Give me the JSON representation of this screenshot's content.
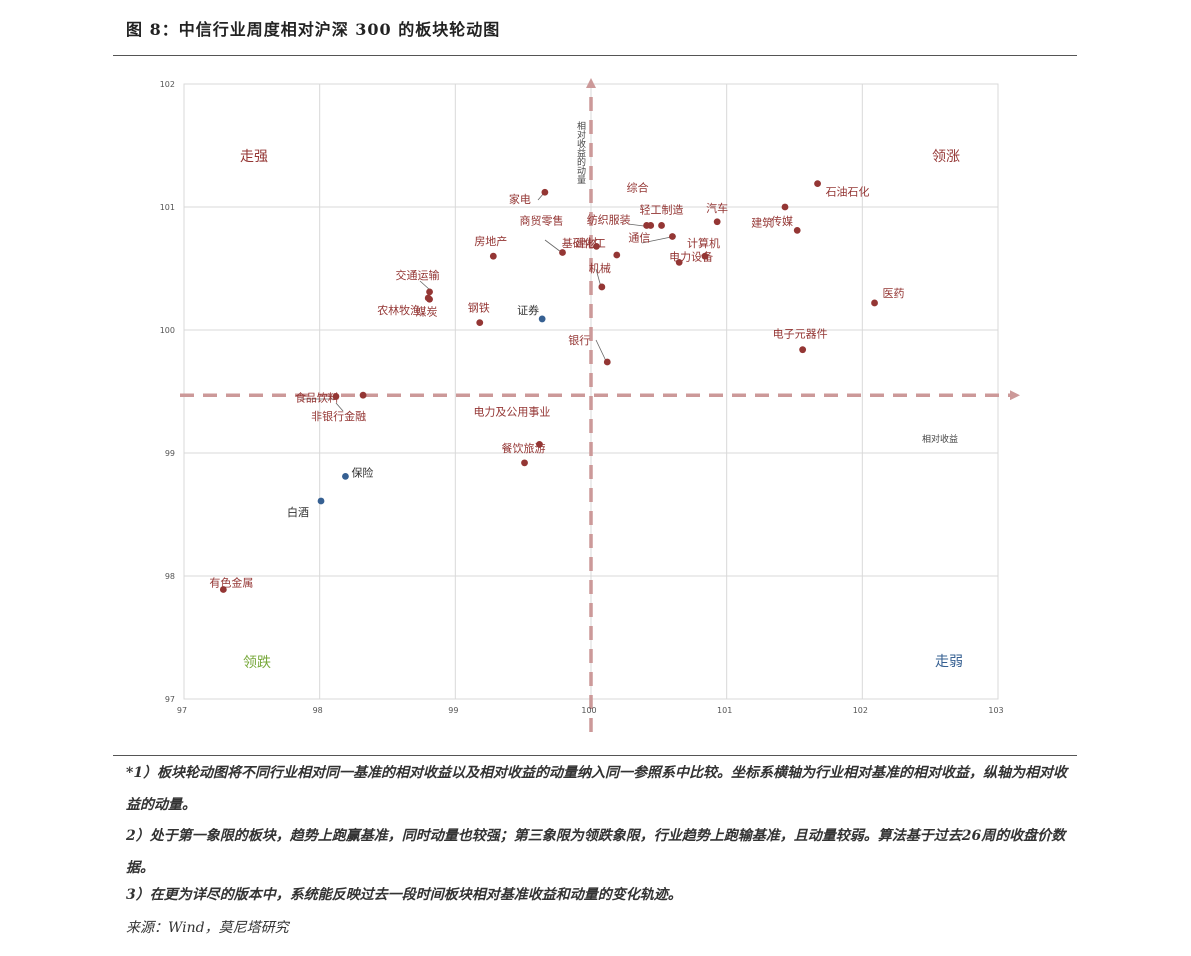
{
  "title": "图 8：中信行业周度相对沪深 300 的板块轮动图",
  "notes": {
    "n1": "*1）板块轮动图将不同行业相对同一基准的相对收益以及相对收益的动量纳入同一参照系中比较。坐标系横轴为行业相对基准的相对收益，纵轴为相对收益的动量。",
    "n2": " 2）处于第一象限的板块，趋势上跑赢基准，同时动量也较强；第三象限为领跌象限，行业趋势上跑输基准，且动量较弱。算法基于过去26周的收盘价数据。",
    "n3": " 3）在更为详尽的版本中，系统能反映过去一段时间板块相对基准收益和动量的变化轨迹。"
  },
  "source": "来源：Wind，莫尼塔研究",
  "colors": {
    "red": "#943634",
    "blue": "#366092",
    "green": "#77a83a",
    "axis": "#cc9999",
    "grid": "#d9d9d9"
  },
  "chart_data": {
    "type": "scatter",
    "xlabel": "相对收益",
    "ylabel": "相对收益的动量",
    "xlim": [
      97,
      103
    ],
    "ylim": [
      97,
      102
    ],
    "xticks": [
      "97",
      "98",
      "99",
      "100",
      "101",
      "102",
      "103"
    ],
    "yticks": [
      "97",
      "98",
      "99",
      "100",
      "101",
      "102"
    ],
    "grid": true,
    "reference_lines": {
      "x": 100,
      "y": 99.47
    },
    "quadrant_labels": {
      "top_left": "走强",
      "top_right": "领涨",
      "bottom_left": "领跌",
      "bottom_right": "走弱"
    },
    "points": [
      {
        "name": "石油石化",
        "x": 101.67,
        "y": 101.19,
        "color": "red"
      },
      {
        "name": "传媒",
        "x": 101.43,
        "y": 101.0,
        "color": "red"
      },
      {
        "name": "建筑",
        "x": 101.52,
        "y": 100.81,
        "color": "red"
      },
      {
        "name": "医药",
        "x": 102.09,
        "y": 100.22,
        "color": "red"
      },
      {
        "name": "电子元器件",
        "x": 101.56,
        "y": 99.84,
        "color": "red"
      },
      {
        "name": "汽车",
        "x": 100.93,
        "y": 100.88,
        "color": "red"
      },
      {
        "name": "计算机",
        "x": 100.84,
        "y": 100.6,
        "color": "red"
      },
      {
        "name": "电力设备",
        "x": 100.65,
        "y": 100.55,
        "color": "red"
      },
      {
        "name": "综合",
        "x": 100.41,
        "y": 100.85,
        "color": "red"
      },
      {
        "name": "轻工制造",
        "x": 100.52,
        "y": 100.85,
        "color": "red"
      },
      {
        "name": "纺织服装",
        "x": 100.44,
        "y": 100.85,
        "color": "red"
      },
      {
        "name": "通信",
        "x": 100.6,
        "y": 100.76,
        "color": "red"
      },
      {
        "name": "基础化工",
        "x": 100.19,
        "y": 100.61,
        "color": "red"
      },
      {
        "name": "建材",
        "x": 100.04,
        "y": 100.68,
        "color": "red"
      },
      {
        "name": "商贸零售",
        "x": 99.79,
        "y": 100.63,
        "color": "red"
      },
      {
        "name": "机械",
        "x": 100.08,
        "y": 100.35,
        "color": "red"
      },
      {
        "name": "家电",
        "x": 99.66,
        "y": 101.12,
        "color": "red"
      },
      {
        "name": "房地产",
        "x": 99.28,
        "y": 100.6,
        "color": "red"
      },
      {
        "name": "交通运输",
        "x": 98.81,
        "y": 100.31,
        "color": "red"
      },
      {
        "name": "煤炭",
        "x": 98.81,
        "y": 100.25,
        "color": "red"
      },
      {
        "name": "农林牧渔",
        "x": 98.8,
        "y": 100.26,
        "color": "red"
      },
      {
        "name": "钢铁",
        "x": 99.18,
        "y": 100.06,
        "color": "red"
      },
      {
        "name": "证券",
        "x": 99.64,
        "y": 100.09,
        "color": "blue"
      },
      {
        "name": "银行",
        "x": 100.12,
        "y": 99.74,
        "color": "red"
      },
      {
        "name": "食品饮料",
        "x": 98.12,
        "y": 99.46,
        "color": "red"
      },
      {
        "name": "非银行金融",
        "x": 98.32,
        "y": 99.47,
        "color": "red"
      },
      {
        "name": "电力及公用事业",
        "x": 99.62,
        "y": 99.07,
        "color": "red"
      },
      {
        "name": "餐饮旅游",
        "x": 99.51,
        "y": 98.92,
        "color": "red"
      },
      {
        "name": "保险",
        "x": 98.19,
        "y": 98.81,
        "color": "blue"
      },
      {
        "name": "白酒",
        "x": 98.01,
        "y": 98.61,
        "color": "blue"
      },
      {
        "name": "有色金属",
        "x": 97.29,
        "y": 97.89,
        "color": "red"
      }
    ]
  }
}
